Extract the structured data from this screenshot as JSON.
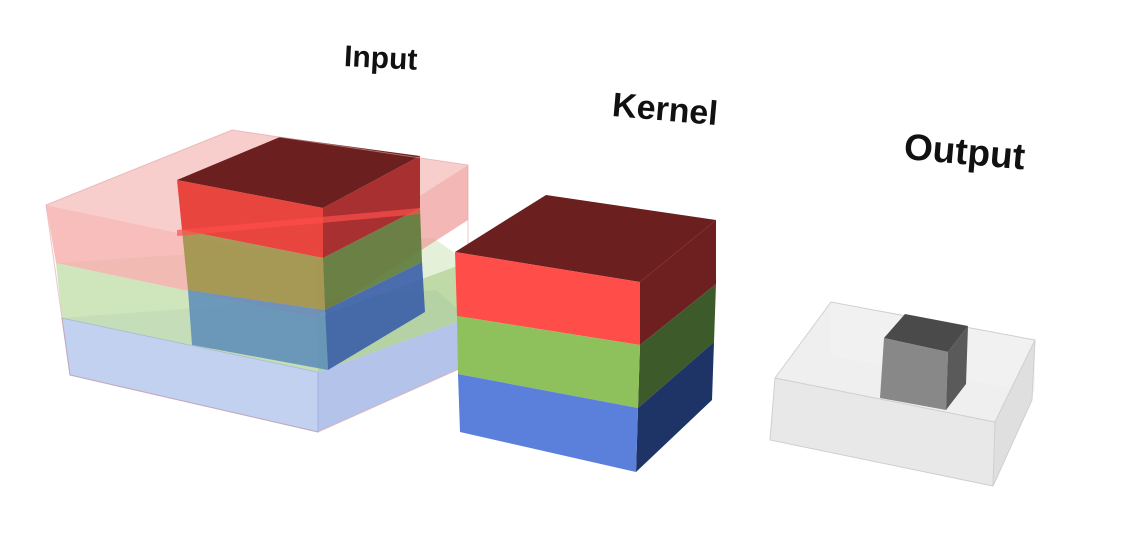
{
  "labels": {
    "input": "Input",
    "kernel": "Kernel",
    "output": "Output"
  },
  "colors": {
    "red_channel": "#ff4e4a",
    "green_channel": "#8ec15c",
    "blue_channel": "#5a80dc",
    "output_cube": "#808080",
    "background": "#ffffff"
  }
}
